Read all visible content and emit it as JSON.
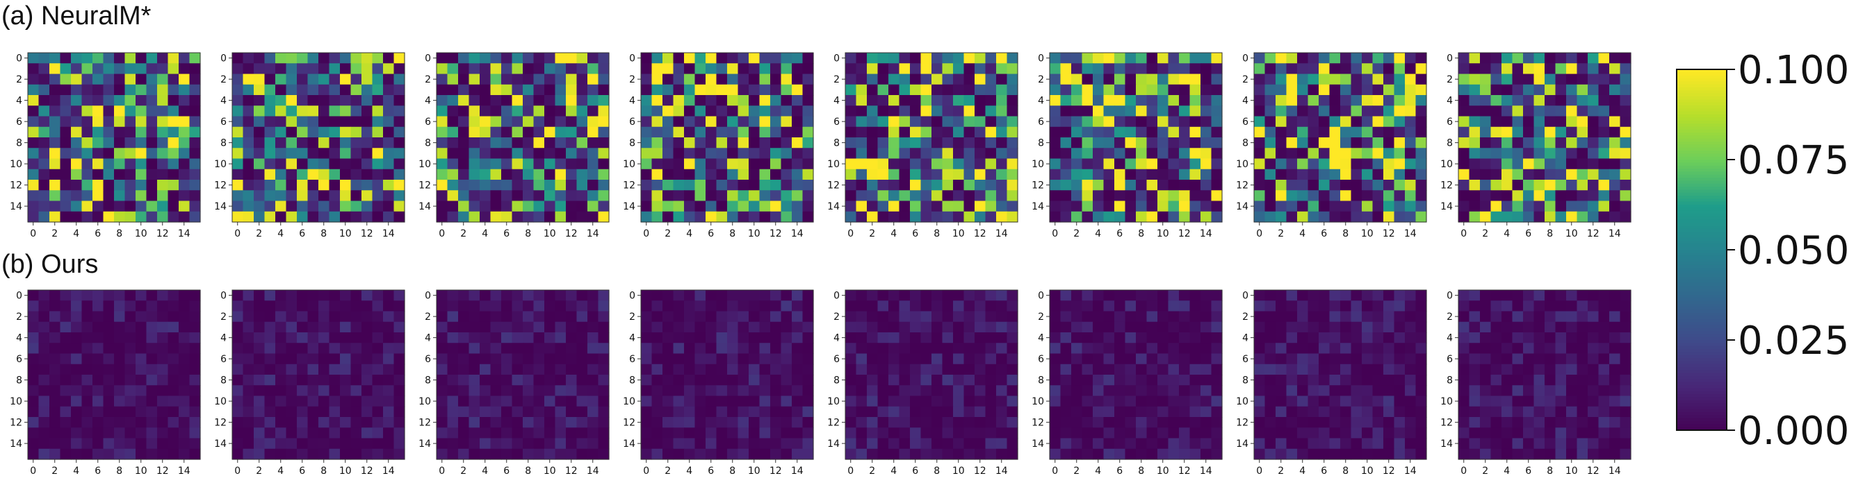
{
  "rows": [
    {
      "label": "(a) NeuralM*"
    },
    {
      "label": "(b) Ours"
    }
  ],
  "chart_data": {
    "type": "heatmap",
    "grid_size": 16,
    "x_ticks": [
      "0",
      "2",
      "4",
      "6",
      "8",
      "10",
      "12",
      "14"
    ],
    "y_ticks": [
      "0",
      "2",
      "4",
      "6",
      "8",
      "10",
      "12",
      "14"
    ],
    "colormap": "viridis",
    "colorbar": {
      "range": [
        0,
        0.1
      ],
      "ticks": [
        "0.000",
        "0.025",
        "0.050",
        "0.075",
        "0.100"
      ],
      "tick_values": [
        0,
        0.025,
        0.05,
        0.075,
        0.1
      ]
    },
    "panels_per_row": 8,
    "row_value_scale": [
      0.1,
      0.018
    ]
  },
  "colors": {
    "viridis": [
      "#440154",
      "#482777",
      "#3f4a8a",
      "#31688e",
      "#26838f",
      "#1f9d8a",
      "#6cce5a",
      "#b6de2b",
      "#fee825"
    ],
    "text": "#111111"
  }
}
